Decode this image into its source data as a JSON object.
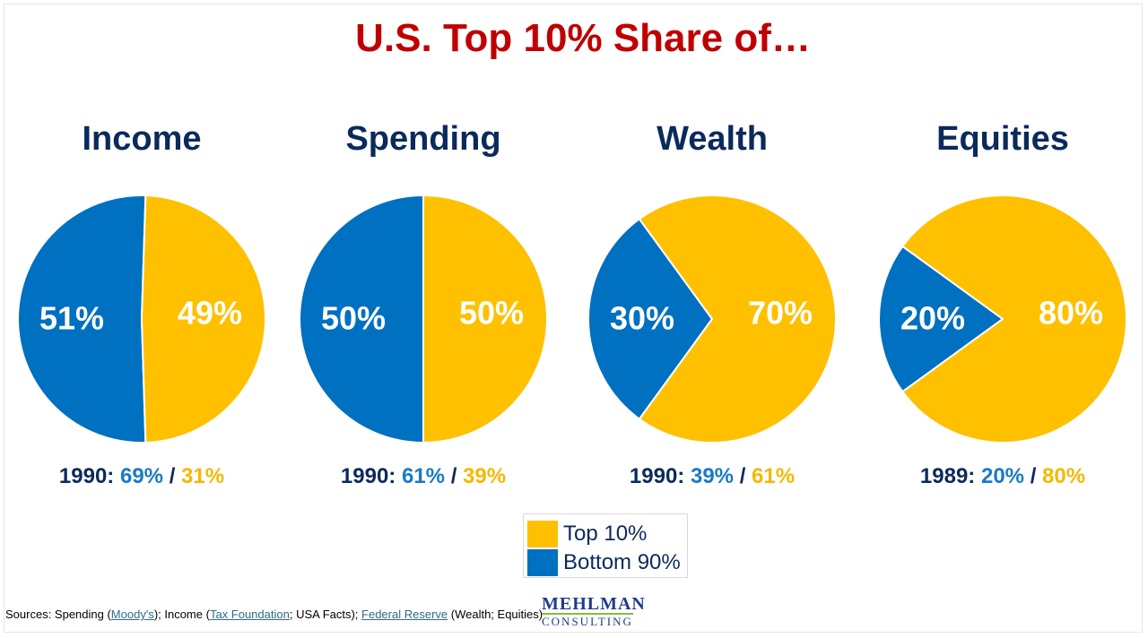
{
  "title": "U.S. Top 10% Share of…",
  "colors": {
    "top10": "#FFC000",
    "bottom90": "#0070C0",
    "title": "#C00000",
    "heading": "#0B2A5C",
    "label_blue": "#1A7AC6",
    "label_gold": "#F5B800"
  },
  "chart_data": [
    {
      "type": "pie",
      "title": "Income",
      "slices": [
        {
          "name": "Top 10%",
          "value": 49,
          "label": "49%"
        },
        {
          "name": "Bottom 90%",
          "value": 51,
          "label": "51%"
        }
      ],
      "historical": {
        "year": "1990",
        "sep": ":",
        "bottom": "69%",
        "slash": "/",
        "top": "31%"
      }
    },
    {
      "type": "pie",
      "title": "Spending",
      "slices": [
        {
          "name": "Top 10%",
          "value": 50,
          "label": "50%"
        },
        {
          "name": "Bottom 90%",
          "value": 50,
          "label": "50%"
        }
      ],
      "historical": {
        "year": "1990",
        "sep": ":",
        "bottom": "61%",
        "slash": "/",
        "top": "39%"
      }
    },
    {
      "type": "pie",
      "title": "Wealth",
      "slices": [
        {
          "name": "Top 10%",
          "value": 70,
          "label": "70%"
        },
        {
          "name": "Bottom 90%",
          "value": 30,
          "label": "30%"
        }
      ],
      "historical": {
        "year": "1990",
        "sep": ":",
        "bottom": "39%",
        "slash": "/",
        "top": "61%"
      }
    },
    {
      "type": "pie",
      "title": "Equities",
      "slices": [
        {
          "name": "Top 10%",
          "value": 80,
          "label": "80%"
        },
        {
          "name": "Bottom 90%",
          "value": 20,
          "label": "20%"
        }
      ],
      "historical": {
        "year": "1989",
        "sep": ":",
        "bottom": "20%",
        "slash": "/",
        "top": "80%"
      }
    }
  ],
  "legend": [
    {
      "label": "Top 10%",
      "color": "#FFC000"
    },
    {
      "label": "Bottom 90%",
      "color": "#0070C0"
    }
  ],
  "sources": {
    "prefix": "Sources: Spending (",
    "moodys": "Moody's",
    "mid1": "); Income (",
    "taxfoundation": "Tax Foundation",
    "mid2": "; USA Facts); ",
    "fed": "Federal Reserve",
    "suffix": " (Wealth; Equities)"
  },
  "logo": {
    "main": "MEHLMAN",
    "sub": "CONSULTING"
  }
}
